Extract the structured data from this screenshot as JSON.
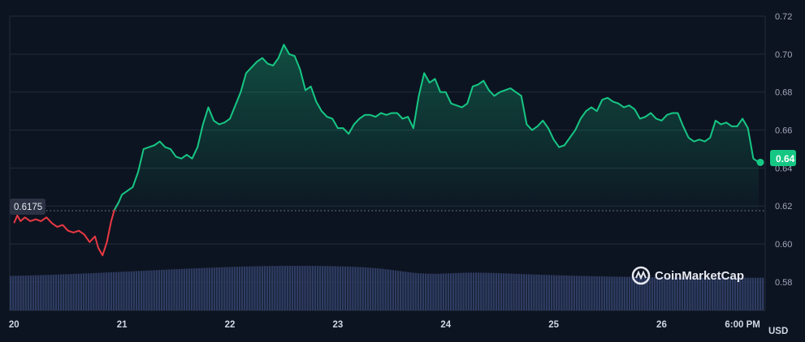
{
  "chart_data": {
    "type": "line",
    "title": "",
    "currency_label": "USD",
    "watermark": "CoinMarketCap",
    "reference_label": "0.6175",
    "reference_value": 0.6175,
    "current_label": "0.64",
    "current_value": 0.643,
    "ylim": [
      0.565,
      0.72
    ],
    "y_ticks": [
      0.58,
      0.6,
      0.62,
      0.64,
      0.66,
      0.68,
      0.7,
      0.72
    ],
    "y_tick_labels": [
      "0.58",
      "0.60",
      "0.62",
      "0.64",
      "0.66",
      "0.68",
      "0.70",
      "0.72"
    ],
    "x_ticks": [
      20,
      21,
      22,
      23,
      24,
      25,
      26,
      26.75
    ],
    "x_tick_labels": [
      "20",
      "21",
      "22",
      "23",
      "24",
      "25",
      "26",
      "6:00 PM"
    ],
    "xlim": [
      19.96,
      26.96
    ],
    "colors": {
      "up": "#16c784",
      "down": "#ea3943",
      "volume": "#2f3d63",
      "background": "#0d1421"
    },
    "series": [
      {
        "values": [
          [
            20.0,
            0.611
          ],
          [
            20.03,
            0.615
          ],
          [
            20.06,
            0.612
          ],
          [
            20.1,
            0.614
          ],
          [
            20.15,
            0.612
          ],
          [
            20.2,
            0.613
          ],
          [
            20.25,
            0.612
          ],
          [
            20.3,
            0.614
          ],
          [
            20.35,
            0.611
          ],
          [
            20.4,
            0.609
          ],
          [
            20.45,
            0.61
          ],
          [
            20.5,
            0.607
          ],
          [
            20.55,
            0.606
          ],
          [
            20.6,
            0.607
          ],
          [
            20.65,
            0.605
          ],
          [
            20.7,
            0.601
          ],
          [
            20.75,
            0.604
          ],
          [
            20.78,
            0.598
          ],
          [
            20.82,
            0.594
          ],
          [
            20.86,
            0.601
          ],
          [
            20.9,
            0.612
          ],
          [
            20.93,
            0.618
          ],
          [
            20.97,
            0.622
          ],
          [
            21.0,
            0.626
          ],
          [
            21.05,
            0.628
          ],
          [
            21.1,
            0.63
          ],
          [
            21.15,
            0.638
          ],
          [
            21.2,
            0.65
          ],
          [
            21.25,
            0.651
          ],
          [
            21.3,
            0.652
          ],
          [
            21.35,
            0.654
          ],
          [
            21.4,
            0.651
          ],
          [
            21.45,
            0.65
          ],
          [
            21.5,
            0.646
          ],
          [
            21.55,
            0.645
          ],
          [
            21.6,
            0.647
          ],
          [
            21.65,
            0.645
          ],
          [
            21.7,
            0.651
          ],
          [
            21.75,
            0.663
          ],
          [
            21.8,
            0.672
          ],
          [
            21.85,
            0.665
          ],
          [
            21.9,
            0.663
          ],
          [
            21.95,
            0.664
          ],
          [
            22.0,
            0.666
          ],
          [
            22.05,
            0.673
          ],
          [
            22.1,
            0.68
          ],
          [
            22.15,
            0.69
          ],
          [
            22.2,
            0.693
          ],
          [
            22.25,
            0.696
          ],
          [
            22.3,
            0.698
          ],
          [
            22.35,
            0.695
          ],
          [
            22.4,
            0.694
          ],
          [
            22.45,
            0.698
          ],
          [
            22.5,
            0.705
          ],
          [
            22.55,
            0.7
          ],
          [
            22.6,
            0.699
          ],
          [
            22.65,
            0.692
          ],
          [
            22.7,
            0.681
          ],
          [
            22.75,
            0.683
          ],
          [
            22.8,
            0.675
          ],
          [
            22.85,
            0.67
          ],
          [
            22.9,
            0.667
          ],
          [
            22.95,
            0.666
          ],
          [
            23.0,
            0.661
          ],
          [
            23.05,
            0.661
          ],
          [
            23.1,
            0.658
          ],
          [
            23.15,
            0.663
          ],
          [
            23.2,
            0.666
          ],
          [
            23.25,
            0.668
          ],
          [
            23.3,
            0.668
          ],
          [
            23.35,
            0.667
          ],
          [
            23.4,
            0.669
          ],
          [
            23.45,
            0.668
          ],
          [
            23.5,
            0.669
          ],
          [
            23.55,
            0.669
          ],
          [
            23.6,
            0.666
          ],
          [
            23.65,
            0.667
          ],
          [
            23.7,
            0.661
          ],
          [
            23.75,
            0.678
          ],
          [
            23.8,
            0.69
          ],
          [
            23.85,
            0.685
          ],
          [
            23.9,
            0.687
          ],
          [
            23.95,
            0.68
          ],
          [
            24.0,
            0.68
          ],
          [
            24.05,
            0.674
          ],
          [
            24.1,
            0.673
          ],
          [
            24.15,
            0.672
          ],
          [
            24.2,
            0.674
          ],
          [
            24.25,
            0.683
          ],
          [
            24.3,
            0.684
          ],
          [
            24.35,
            0.686
          ],
          [
            24.4,
            0.681
          ],
          [
            24.45,
            0.678
          ],
          [
            24.5,
            0.68
          ],
          [
            24.55,
            0.681
          ],
          [
            24.6,
            0.682
          ],
          [
            24.65,
            0.68
          ],
          [
            24.7,
            0.678
          ],
          [
            24.75,
            0.663
          ],
          [
            24.8,
            0.66
          ],
          [
            24.85,
            0.662
          ],
          [
            24.9,
            0.665
          ],
          [
            24.95,
            0.661
          ],
          [
            25.0,
            0.655
          ],
          [
            25.05,
            0.651
          ],
          [
            25.1,
            0.652
          ],
          [
            25.15,
            0.656
          ],
          [
            25.2,
            0.66
          ],
          [
            25.25,
            0.666
          ],
          [
            25.3,
            0.67
          ],
          [
            25.35,
            0.672
          ],
          [
            25.4,
            0.67
          ],
          [
            25.45,
            0.676
          ],
          [
            25.5,
            0.677
          ],
          [
            25.55,
            0.675
          ],
          [
            25.6,
            0.674
          ],
          [
            25.65,
            0.672
          ],
          [
            25.7,
            0.673
          ],
          [
            25.75,
            0.671
          ],
          [
            25.8,
            0.666
          ],
          [
            25.85,
            0.667
          ],
          [
            25.9,
            0.669
          ],
          [
            25.95,
            0.666
          ],
          [
            26.0,
            0.665
          ],
          [
            26.05,
            0.668
          ],
          [
            26.1,
            0.669
          ],
          [
            26.15,
            0.669
          ],
          [
            26.2,
            0.662
          ],
          [
            26.25,
            0.656
          ],
          [
            26.3,
            0.654
          ],
          [
            26.35,
            0.655
          ],
          [
            26.4,
            0.654
          ],
          [
            26.45,
            0.656
          ],
          [
            26.5,
            0.665
          ],
          [
            26.55,
            0.663
          ],
          [
            26.6,
            0.664
          ],
          [
            26.65,
            0.662
          ],
          [
            26.7,
            0.662
          ],
          [
            26.75,
            0.666
          ],
          [
            26.8,
            0.661
          ],
          [
            26.85,
            0.645
          ],
          [
            26.9,
            0.643
          ]
        ]
      }
    ]
  }
}
